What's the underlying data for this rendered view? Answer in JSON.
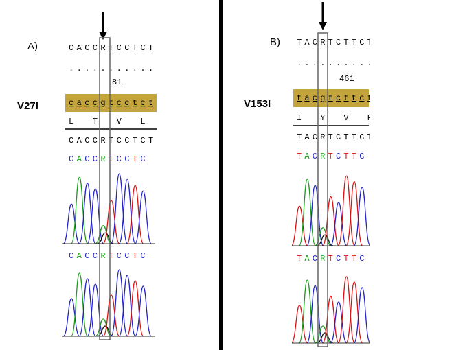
{
  "panels": [
    {
      "label": "A)",
      "mutation": "V27I",
      "reference": "CACCRTCCTCT",
      "dots": "...........",
      "position": "81",
      "codon_strip": "caccgtcctct",
      "amino_acids": "L  T  V  L",
      "consensus": "CACCRTCCTCT",
      "trace1_bases": "CACCRTCCTC",
      "trace2_bases": "CACCRTCCTC"
    },
    {
      "label": "B)",
      "mutation": "V153I",
      "reference": "TACRTCTTCT",
      "dots": "..........",
      "position": "461",
      "codon_strip": "tacgtcttct",
      "amino_acids": "I  Y  V  F",
      "consensus": "TACRTCTTCT",
      "trace1_bases": "TACRTCTTC",
      "trace2_bases": "TACRTCTTC"
    }
  ]
}
